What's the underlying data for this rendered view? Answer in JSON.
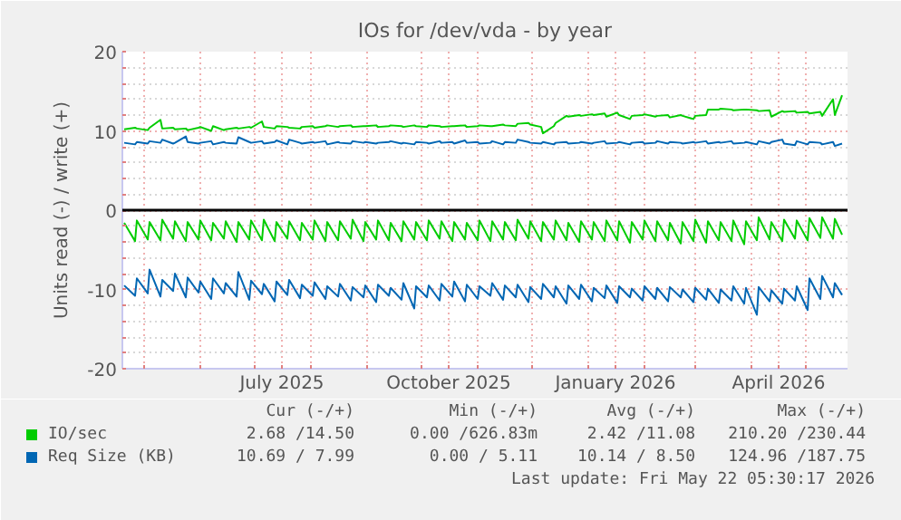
{
  "chart_data": {
    "type": "line",
    "title": "IOs for /dev/vda - by year",
    "ylabel": "Units read (-) / write (+)",
    "xlim": [
      "2025-04-19",
      "2026-05-24"
    ],
    "ylim": [
      -20,
      20
    ],
    "yticks": [
      -20,
      {
        "value": -18,
        "label": null
      },
      {
        "value": -16,
        "label": null
      },
      {
        "value": -14,
        "label": null
      },
      {
        "value": -12,
        "label": null
      },
      -10,
      {
        "value": -8,
        "label": null
      },
      {
        "value": -6,
        "label": null
      },
      {
        "value": -4,
        "label": null
      },
      {
        "value": -2,
        "label": null
      },
      0,
      {
        "value": 2,
        "label": null
      },
      {
        "value": 4,
        "label": null
      },
      {
        "value": 6,
        "label": null
      },
      {
        "value": 8,
        "label": null
      },
      10,
      {
        "value": 12,
        "label": null
      },
      {
        "value": 14,
        "label": null
      },
      {
        "value": 16,
        "label": null
      },
      {
        "value": 18,
        "label": null
      },
      20
    ],
    "xticks": [
      {
        "value": "2025-05-01",
        "label": null
      },
      {
        "value": "2025-06-01",
        "label": null
      },
      {
        "value": "2025-07-01",
        "label": null
      },
      {
        "value": "2025-07-16",
        "label": "July 2025"
      },
      {
        "value": "2025-08-01",
        "label": null
      },
      {
        "value": "2025-09-01",
        "label": null
      },
      {
        "value": "2025-10-01",
        "label": null
      },
      {
        "value": "2025-10-16",
        "label": "October 2025"
      },
      {
        "value": "2025-11-01",
        "label": null
      },
      {
        "value": "2025-12-01",
        "label": null
      },
      {
        "value": "2026-01-01",
        "label": null
      },
      {
        "value": "2026-01-16",
        "label": "January 2026"
      },
      {
        "value": "2026-02-01",
        "label": null
      },
      {
        "value": "2026-03-01",
        "label": null
      },
      {
        "value": "2026-04-01",
        "label": null
      },
      {
        "value": "2026-04-16",
        "label": "April 2026"
      },
      {
        "value": "2026-05-01",
        "label": null
      }
    ],
    "grid": true,
    "legend": "bottom left",
    "ref_lines": [
      {
        "axis": "y",
        "value": 0,
        "color": "#000000"
      }
    ],
    "x": [
      "2025-04-20",
      "2025-04-26",
      "2025-04-27",
      "2025-05-03",
      "2025-05-04",
      "2025-05-10",
      "2025-05-11",
      "2025-05-17",
      "2025-05-18",
      "2025-05-24",
      "2025-05-25",
      "2025-05-31",
      "2025-06-01",
      "2025-06-07",
      "2025-06-08",
      "2025-06-14",
      "2025-06-15",
      "2025-06-21",
      "2025-06-22",
      "2025-06-28",
      "2025-06-29",
      "2025-07-05",
      "2025-07-06",
      "2025-07-12",
      "2025-07-13",
      "2025-07-19",
      "2025-07-20",
      "2025-07-26",
      "2025-07-27",
      "2025-08-02",
      "2025-08-03",
      "2025-08-09",
      "2025-08-10",
      "2025-08-16",
      "2025-08-17",
      "2025-08-23",
      "2025-08-24",
      "2025-08-30",
      "2025-08-31",
      "2025-09-06",
      "2025-09-07",
      "2025-09-13",
      "2025-09-14",
      "2025-09-20",
      "2025-09-21",
      "2025-09-27",
      "2025-09-28",
      "2025-10-04",
      "2025-10-05",
      "2025-10-11",
      "2025-10-12",
      "2025-10-18",
      "2025-10-19",
      "2025-10-25",
      "2025-10-26",
      "2025-11-01",
      "2025-11-02",
      "2025-11-08",
      "2025-11-09",
      "2025-11-15",
      "2025-11-16",
      "2025-11-22",
      "2025-11-23",
      "2025-11-29",
      "2025-11-30",
      "2025-12-06",
      "2025-12-07",
      "2025-12-13",
      "2025-12-14",
      "2025-12-20",
      "2025-12-21",
      "2025-12-27",
      "2025-12-28",
      "2026-01-03",
      "2026-01-04",
      "2026-01-10",
      "2026-01-11",
      "2026-01-17",
      "2026-01-18",
      "2026-01-24",
      "2026-01-25",
      "2026-01-31",
      "2026-02-01",
      "2026-02-07",
      "2026-02-08",
      "2026-02-14",
      "2026-02-15",
      "2026-02-21",
      "2026-02-22",
      "2026-02-28",
      "2026-03-01",
      "2026-03-07",
      "2026-03-08",
      "2026-03-14",
      "2026-03-15",
      "2026-03-21",
      "2026-03-22",
      "2026-03-28",
      "2026-03-29",
      "2026-04-04",
      "2026-04-05",
      "2026-04-11",
      "2026-04-12",
      "2026-04-18",
      "2026-04-19",
      "2026-04-25",
      "2026-04-26",
      "2026-05-02",
      "2026-05-03",
      "2026-05-09",
      "2026-05-10",
      "2026-05-16",
      "2026-05-17",
      "2026-05-21"
    ],
    "series": [
      {
        "name": "IO/sec",
        "color": "#00cc00",
        "values": [
          10.2,
          10.4,
          10.3,
          10.1,
          10.4,
          11.4,
          10.3,
          10.4,
          10.2,
          10.3,
          10.1,
          10.4,
          10.5,
          10.0,
          10.6,
          10.1,
          10.2,
          10.4,
          10.3,
          10.5,
          10.4,
          11.2,
          10.5,
          10.3,
          10.6,
          10.5,
          10.4,
          10.3,
          10.5,
          10.6,
          10.4,
          10.6,
          10.7,
          10.5,
          10.6,
          10.7,
          10.5,
          10.6,
          10.6,
          10.7,
          10.5,
          10.6,
          10.7,
          10.6,
          10.5,
          10.7,
          10.6,
          10.5,
          10.7,
          10.6,
          10.5,
          10.6,
          10.6,
          10.7,
          10.5,
          10.6,
          10.7,
          10.6,
          10.6,
          10.8,
          10.7,
          10.6,
          10.9,
          11.0,
          10.8,
          10.5,
          9.7,
          10.6,
          11.0,
          11.9,
          11.8,
          12.0,
          11.9,
          12.1,
          12.0,
          12.2,
          11.8,
          12.3,
          12.0,
          11.5,
          11.9,
          12.0,
          12.1,
          11.8,
          11.9,
          12.0,
          11.7,
          12.0,
          11.9,
          11.5,
          11.9,
          12.0,
          12.7,
          12.7,
          12.8,
          12.7,
          12.6,
          12.7,
          12.7,
          12.6,
          12.5,
          12.6,
          11.8,
          12.5,
          12.4,
          12.5,
          12.3,
          12.4,
          12.2,
          12.4,
          11.9,
          14.0,
          12.0,
          14.5
        ]
      },
      {
        "color": "#00cc00",
        "values": [
          -1.6,
          -3.9,
          -1.3,
          -3.7,
          -1.5,
          -3.8,
          -1.2,
          -3.6,
          -1.4,
          -3.9,
          -1.5,
          -3.7,
          -1.3,
          -3.8,
          -1.6,
          -3.6,
          -1.4,
          -4.0,
          -1.5,
          -3.7,
          -1.3,
          -3.8,
          -1.2,
          -3.9,
          -1.5,
          -3.6,
          -1.4,
          -3.8,
          -1.6,
          -3.7,
          -1.3,
          -3.9,
          -1.5,
          -3.8,
          -1.4,
          -3.6,
          -1.2,
          -3.9,
          -1.5,
          -3.7,
          -1.3,
          -3.8,
          -1.6,
          -3.9,
          -1.4,
          -3.7,
          -1.5,
          -3.8,
          -1.3,
          -3.6,
          -1.4,
          -3.9,
          -1.5,
          -3.7,
          -1.6,
          -3.8,
          -1.3,
          -3.9,
          -1.4,
          -3.7,
          -1.5,
          -3.8,
          -1.2,
          -3.6,
          -1.4,
          -3.9,
          -1.5,
          -3.7,
          -1.3,
          -3.8,
          -1.6,
          -4.0,
          -1.4,
          -3.7,
          -1.5,
          -3.9,
          -1.3,
          -3.8,
          -1.4,
          -4.1,
          -1.5,
          -3.7,
          -1.3,
          -3.9,
          -1.4,
          -3.8,
          -1.6,
          -4.2,
          -1.5,
          -3.9,
          -1.2,
          -4.1,
          -1.4,
          -3.8,
          -1.5,
          -3.9,
          -1.3,
          -4.3,
          -1.4,
          -3.8,
          -0.9,
          -3.7,
          -1.5,
          -3.9,
          -1.2,
          -3.6,
          -1.3,
          -3.8,
          -1.0,
          -3.5,
          -0.9,
          -3.6,
          -1.1,
          -3.1
        ]
      },
      {
        "name": "Req Size (KB)",
        "color": "#0066b3",
        "values": [
          8.5,
          8.3,
          8.6,
          8.4,
          8.7,
          8.5,
          8.9,
          8.4,
          8.5,
          9.3,
          8.6,
          8.4,
          8.5,
          8.7,
          8.3,
          8.6,
          8.5,
          8.4,
          9.2,
          8.6,
          8.5,
          8.7,
          8.4,
          8.6,
          8.8,
          8.3,
          8.9,
          8.5,
          8.4,
          8.6,
          8.5,
          8.7,
          8.3,
          8.6,
          8.5,
          8.4,
          8.7,
          8.5,
          8.6,
          8.4,
          8.5,
          8.6,
          8.7,
          8.4,
          8.5,
          8.3,
          8.6,
          8.5,
          8.4,
          8.7,
          8.5,
          8.6,
          8.4,
          8.8,
          8.5,
          8.6,
          8.4,
          8.5,
          8.7,
          8.3,
          8.6,
          8.5,
          8.9,
          8.6,
          8.5,
          8.4,
          8.6,
          8.3,
          8.5,
          8.6,
          8.4,
          8.5,
          8.6,
          8.4,
          8.5,
          8.7,
          8.4,
          8.5,
          8.6,
          8.3,
          8.5,
          8.6,
          8.4,
          8.5,
          8.7,
          8.4,
          8.6,
          8.5,
          8.4,
          8.6,
          8.5,
          8.7,
          8.4,
          8.6,
          8.5,
          8.7,
          8.4,
          8.5,
          8.6,
          8.3,
          8.7,
          8.4,
          8.6,
          8.9,
          8.4,
          8.2,
          8.7,
          8.3,
          8.6,
          8.5,
          8.3,
          8.6,
          8.1,
          8.4
        ]
      },
      {
        "color": "#0066b3",
        "values": [
          -9.5,
          -10.8,
          -8.6,
          -10.5,
          -7.5,
          -10.9,
          -8.8,
          -10.2,
          -8.0,
          -11.0,
          -8.5,
          -10.4,
          -9.0,
          -11.2,
          -8.6,
          -10.5,
          -9.2,
          -10.9,
          -7.8,
          -11.3,
          -8.9,
          -10.6,
          -9.3,
          -11.5,
          -9.0,
          -10.7,
          -8.8,
          -11.1,
          -9.4,
          -10.8,
          -9.1,
          -11.2,
          -9.6,
          -10.9,
          -9.3,
          -11.4,
          -9.7,
          -11.0,
          -9.5,
          -11.6,
          -9.4,
          -10.8,
          -9.8,
          -11.3,
          -9.2,
          -12.4,
          -9.6,
          -11.0,
          -9.5,
          -11.4,
          -9.3,
          -10.9,
          -9.0,
          -11.5,
          -9.4,
          -11.2,
          -9.6,
          -10.8,
          -9.2,
          -11.3,
          -9.5,
          -11.0,
          -9.4,
          -11.6,
          -9.7,
          -11.2,
          -9.3,
          -11.0,
          -9.6,
          -11.8,
          -9.5,
          -11.2,
          -9.4,
          -11.5,
          -9.8,
          -11.1,
          -9.5,
          -11.7,
          -9.6,
          -11.0,
          -9.9,
          -11.4,
          -9.6,
          -11.2,
          -9.8,
          -11.5,
          -9.7,
          -11.0,
          -10.0,
          -11.6,
          -9.8,
          -11.3,
          -9.9,
          -11.7,
          -10.0,
          -11.4,
          -9.6,
          -11.8,
          -9.8,
          -13.2,
          -9.7,
          -11.5,
          -10.1,
          -11.8,
          -9.9,
          -11.4,
          -9.6,
          -12.6,
          -8.6,
          -11.2,
          -8.3,
          -11.0,
          -9.2,
          -10.7
        ]
      }
    ],
    "annotations": [
      "Cur (-/+)",
      "Min (-/+)",
      "Avg (-/+)",
      "Max (-/+)",
      "2.68 /14.50",
      "0.00 /626.83m",
      "2.42 /11.08",
      "210.20 /230.44",
      "10.69 / 7.99",
      "0.00 / 5.11",
      "10.14 / 8.50",
      "124.96 /187.75",
      "Last update: Fri May 22 05:30:17 2026"
    ]
  }
}
